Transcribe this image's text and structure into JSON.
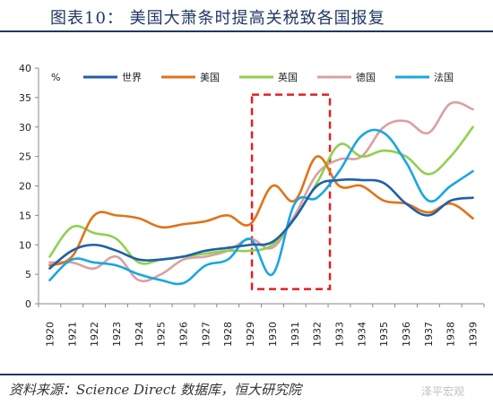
{
  "title": "图表10： 美国大萧条时提高关税致各国报复",
  "source": "资料来源：Science Direct 数据库，恒大研究院",
  "watermark": "泽平宏观",
  "chart_data": {
    "type": "line",
    "ylabel_unit": "%",
    "x": [
      "1920",
      "1921",
      "1922",
      "1923",
      "1924",
      "1925",
      "1926",
      "1927",
      "1928",
      "1929",
      "1930",
      "1931",
      "1932",
      "1933",
      "1934",
      "1935",
      "1936",
      "1937",
      "1938",
      "1939"
    ],
    "ylim": [
      0,
      40
    ],
    "yticks": [
      0,
      5,
      10,
      15,
      20,
      25,
      30,
      35,
      40
    ],
    "grid": false,
    "legend_position": "top",
    "highlight_box": {
      "x_range": [
        "1929",
        "1932"
      ],
      "y_range": [
        2.5,
        35.5
      ],
      "style": "red dashed"
    },
    "series": [
      {
        "name": "世界",
        "color": "#1f5fa8",
        "values": [
          6.0,
          9.0,
          10.0,
          9.0,
          7.5,
          7.5,
          8.0,
          9.0,
          9.5,
          10.0,
          10.5,
          14.5,
          20.0,
          21.0,
          21.0,
          20.5,
          17.0,
          15.0,
          17.5,
          18.0
        ]
      },
      {
        "name": "美国",
        "color": "#e07318",
        "values": [
          6.5,
          8.0,
          15.0,
          15.0,
          14.5,
          13.0,
          13.5,
          14.0,
          15.0,
          13.5,
          20.0,
          17.5,
          25.0,
          20.0,
          20.0,
          17.5,
          17.0,
          15.5,
          17.0,
          14.5
        ]
      },
      {
        "name": "英国",
        "color": "#8fd14f",
        "values": [
          8.0,
          13.0,
          12.0,
          11.0,
          7.0,
          7.5,
          8.0,
          8.5,
          9.0,
          9.0,
          10.0,
          14.5,
          20.5,
          27.0,
          25.0,
          26.0,
          25.0,
          22.0,
          25.0,
          30.0
        ]
      },
      {
        "name": "德国",
        "color": "#d9a0a0",
        "values": [
          7.0,
          7.0,
          6.0,
          8.0,
          4.0,
          5.0,
          7.5,
          8.0,
          9.0,
          11.0,
          9.5,
          15.0,
          22.0,
          24.5,
          25.0,
          30.0,
          31.0,
          29.0,
          34.0,
          33.0
        ]
      },
      {
        "name": "法国",
        "color": "#1aa6e0",
        "values": [
          4.0,
          7.5,
          7.0,
          6.5,
          5.0,
          4.0,
          3.5,
          6.5,
          7.5,
          11.0,
          5.0,
          17.0,
          18.0,
          22.5,
          28.5,
          29.0,
          24.0,
          17.5,
          20.0,
          22.5
        ]
      }
    ]
  }
}
